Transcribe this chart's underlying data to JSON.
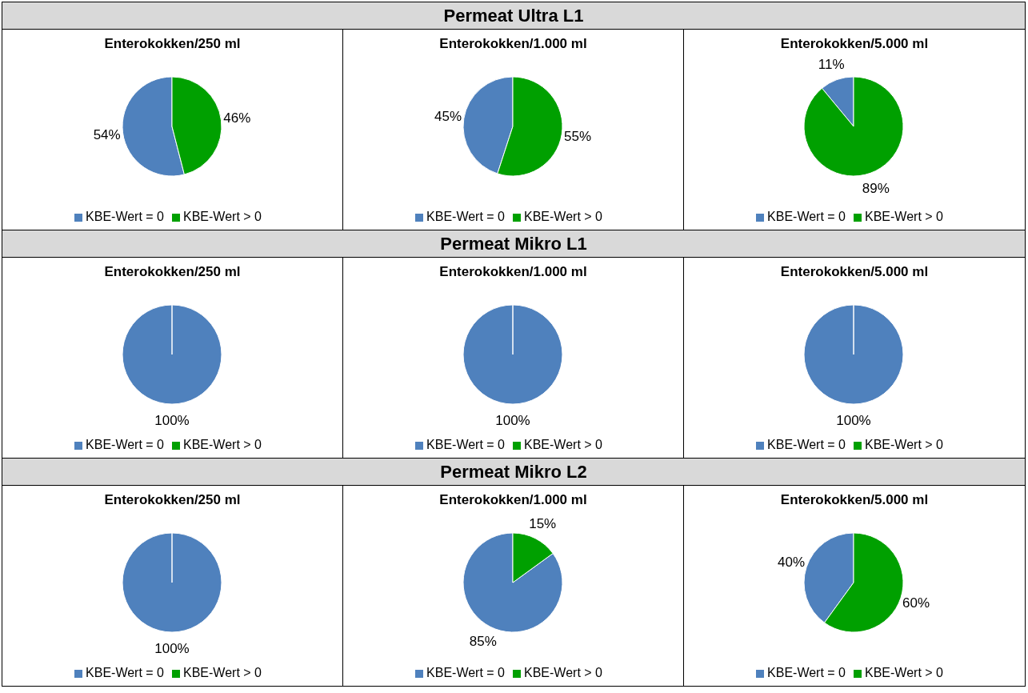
{
  "chart_data": [
    {
      "type": "other",
      "title": "Permeat Ultra L1"
    },
    {
      "type": "pie",
      "title": "Enterokokken/250 ml",
      "categories": [
        "KBE-Wert = 0",
        "KBE-Wert > 0"
      ],
      "values": [
        54,
        46
      ],
      "colors": [
        "#4f81bd",
        "#00a000"
      ],
      "value_labels": [
        "54%",
        "46%"
      ],
      "legend": "bottom"
    },
    {
      "type": "pie",
      "title": "Enterokokken/1.000 ml",
      "categories": [
        "KBE-Wert = 0",
        "KBE-Wert > 0"
      ],
      "values": [
        45,
        55
      ],
      "colors": [
        "#4f81bd",
        "#00a000"
      ],
      "value_labels": [
        "45%",
        "55%"
      ],
      "legend": "bottom"
    },
    {
      "type": "pie",
      "title": "Enterokokken/5.000 ml",
      "categories": [
        "KBE-Wert = 0",
        "KBE-Wert > 0"
      ],
      "values": [
        11,
        89
      ],
      "colors": [
        "#4f81bd",
        "#00a000"
      ],
      "value_labels": [
        "11%",
        "89%"
      ],
      "legend": "bottom"
    },
    {
      "type": "other",
      "title": "Permeat Mikro L1"
    },
    {
      "type": "pie",
      "title": "Enterokokken/250 ml",
      "categories": [
        "KBE-Wert = 0",
        "KBE-Wert > 0"
      ],
      "values": [
        100,
        0
      ],
      "colors": [
        "#4f81bd",
        "#00a000"
      ],
      "value_labels": [
        "100%",
        null
      ],
      "legend": "bottom"
    },
    {
      "type": "pie",
      "title": "Enterokokken/1.000 ml",
      "categories": [
        "KBE-Wert = 0",
        "KBE-Wert > 0"
      ],
      "values": [
        100,
        0
      ],
      "colors": [
        "#4f81bd",
        "#00a000"
      ],
      "value_labels": [
        "100%",
        null
      ],
      "legend": "bottom"
    },
    {
      "type": "pie",
      "title": "Enterokokken/5.000 ml",
      "categories": [
        "KBE-Wert = 0",
        "KBE-Wert > 0"
      ],
      "values": [
        100,
        0
      ],
      "colors": [
        "#4f81bd",
        "#00a000"
      ],
      "value_labels": [
        "100%",
        null
      ],
      "legend": "bottom"
    },
    {
      "type": "other",
      "title": "Permeat Mikro L2"
    },
    {
      "type": "pie",
      "title": "Enterokokken/250 ml",
      "categories": [
        "KBE-Wert = 0",
        "KBE-Wert > 0"
      ],
      "values": [
        100,
        0
      ],
      "colors": [
        "#4f81bd",
        "#00a000"
      ],
      "value_labels": [
        "100%",
        null
      ],
      "legend": "bottom"
    },
    {
      "type": "pie",
      "title": "Enterokokken/1.000 ml",
      "categories": [
        "KBE-Wert = 0",
        "KBE-Wert > 0"
      ],
      "values": [
        85,
        15
      ],
      "colors": [
        "#4f81bd",
        "#00a000"
      ],
      "value_labels": [
        "85%",
        "15%"
      ],
      "legend": "bottom"
    },
    {
      "type": "pie",
      "title": "Enterokokken/5.000 ml",
      "categories": [
        "KBE-Wert = 0",
        "KBE-Wert > 0"
      ],
      "values": [
        40,
        60
      ],
      "colors": [
        "#4f81bd",
        "#00a000"
      ],
      "value_labels": [
        "40%",
        "60%"
      ],
      "legend": "bottom"
    }
  ]
}
